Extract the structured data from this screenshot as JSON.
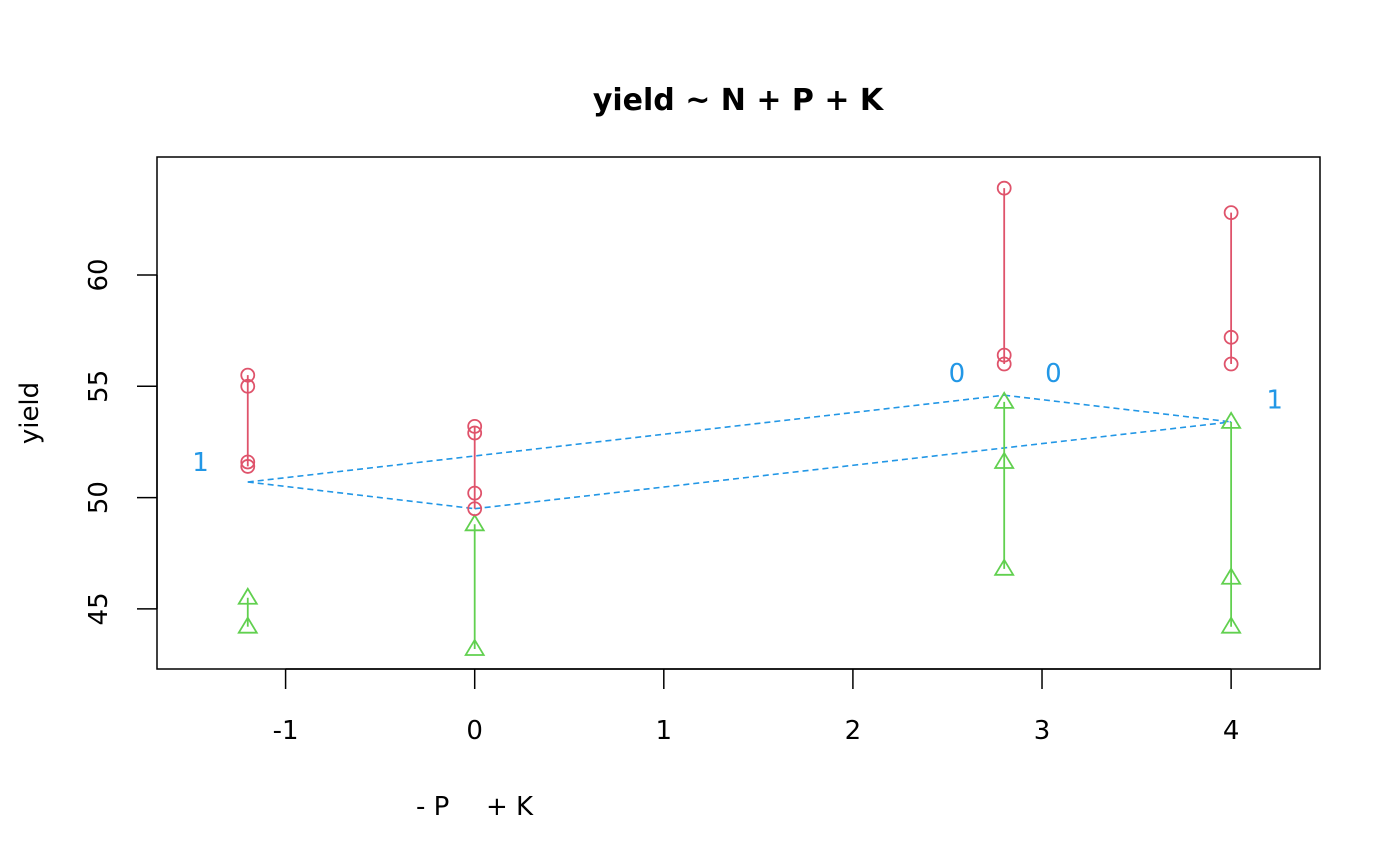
{
  "chart_data": {
    "type": "scatter",
    "title": "yield ~ N + P + K",
    "ylabel": "yield",
    "xlabel_parts": [
      "- P",
      "+ K"
    ],
    "xlim": [
      -1.68,
      4.47
    ],
    "ylim": [
      42.3,
      65.3
    ],
    "xticks": [
      -1,
      0,
      1,
      2,
      3,
      4
    ],
    "yticks": [
      45,
      50,
      55,
      60
    ],
    "colors": {
      "N0": "#DF536B",
      "N1": "#61D04F",
      "model": "#2297E6",
      "axis": "#000000"
    },
    "groups": [
      {
        "x": -1.2,
        "N0": [
          55.5,
          55.0,
          51.6,
          51.4
        ],
        "N1": [
          45.5,
          44.2
        ]
      },
      {
        "x": 0.0,
        "N0": [
          53.2,
          52.9,
          50.2,
          49.5
        ],
        "N1": [
          48.8,
          43.2
        ]
      },
      {
        "x": 2.8,
        "N0": [
          63.9,
          56.4,
          56.0
        ],
        "N1": [
          54.3,
          51.6,
          46.8
        ]
      },
      {
        "x": 4.0,
        "N0": [
          62.8,
          57.2,
          56.0
        ],
        "N1": [
          53.4,
          46.4,
          44.2
        ]
      }
    ],
    "model_lines": [
      {
        "points": [
          [
            -1.2,
            50.7
          ],
          [
            2.8,
            54.6
          ]
        ]
      },
      {
        "points": [
          [
            -1.2,
            50.7
          ],
          [
            0.0,
            49.5
          ]
        ]
      },
      {
        "points": [
          [
            0.0,
            49.5
          ],
          [
            4.0,
            53.4
          ]
        ]
      },
      {
        "points": [
          [
            2.8,
            54.6
          ],
          [
            4.0,
            53.4
          ]
        ]
      }
    ],
    "level_labels": [
      {
        "text": "1",
        "x": -1.45,
        "y": 51.6
      },
      {
        "text": "0",
        "x": 2.55,
        "y": 55.6
      },
      {
        "text": "0",
        "x": 3.06,
        "y": 55.6
      },
      {
        "text": "1",
        "x": 4.23,
        "y": 54.4
      }
    ]
  }
}
